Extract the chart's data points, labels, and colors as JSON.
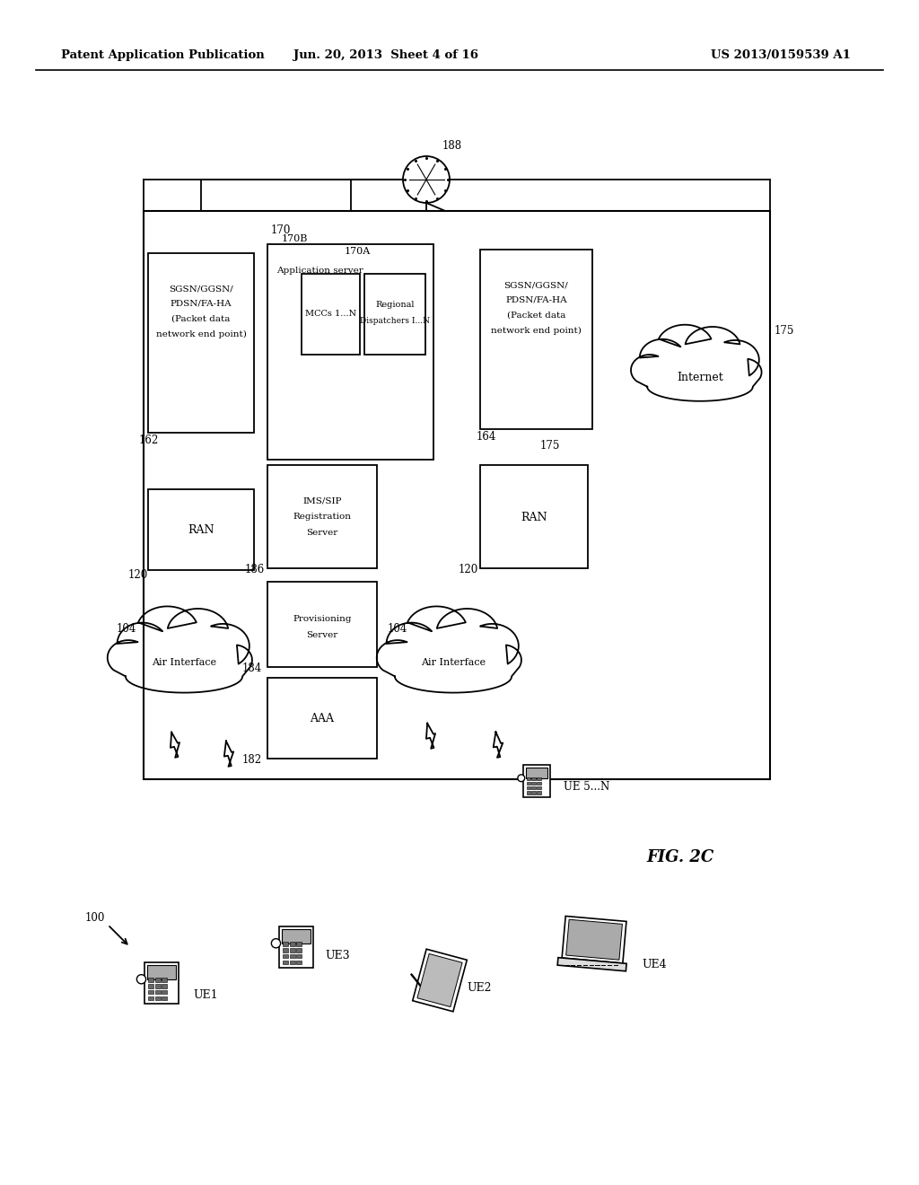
{
  "header_left": "Patent Application Publication",
  "header_center": "Jun. 20, 2013  Sheet 4 of 16",
  "header_right": "US 2013/0159539 A1",
  "fig_label": "FIG. 2C",
  "background": "#ffffff",
  "text_color": "#000000",
  "line_color": "#000000"
}
